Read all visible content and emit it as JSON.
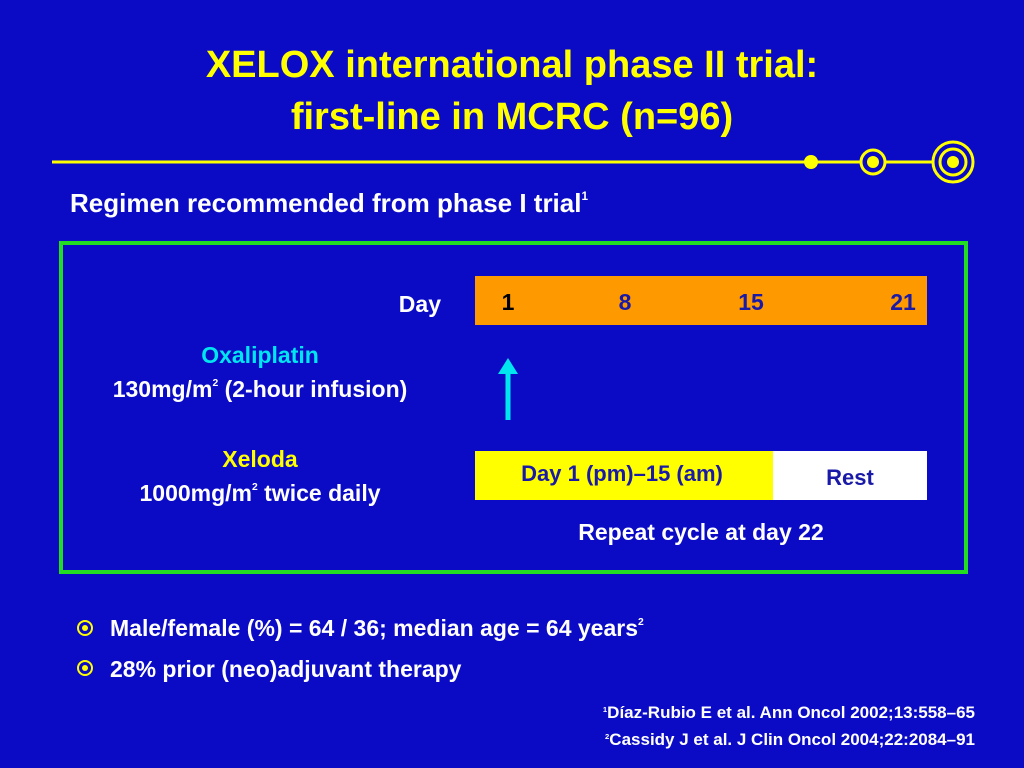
{
  "title": {
    "line1": "XELOX international phase II trial:",
    "line2": "first-line in MCRC (n=96)"
  },
  "subtitle": {
    "text": "Regimen recommended from phase I trial",
    "sup": "1"
  },
  "schedule": {
    "day_label": "Day",
    "days": [
      "1",
      "8",
      "15",
      "21"
    ],
    "drugs": [
      {
        "name": "Oxaliplatin",
        "dose": "130mg/m",
        "dose_sup": "2",
        "dose_rest": " (2-hour infusion)"
      },
      {
        "name": "Xeloda",
        "dose": "1000mg/m",
        "dose_sup": "2",
        "dose_rest": " twice daily"
      }
    ],
    "treatment_bar": "Day 1 (pm)–15 (am)",
    "rest_bar": "Rest",
    "repeat": "Repeat cycle at day 22"
  },
  "bullets": [
    {
      "text": "Male/female (%) = 64 / 36; median age = 64 years",
      "sup": "2"
    },
    {
      "text": "28% prior (neo)adjuvant therapy"
    }
  ],
  "references": [
    {
      "sup": "1",
      "text": "Díaz-Rubio E et al. Ann Oncol 2002;13:558–65"
    },
    {
      "sup": "2",
      "text": "Cassidy J et al. J Clin Oncol 2004;22:2084–91"
    }
  ]
}
